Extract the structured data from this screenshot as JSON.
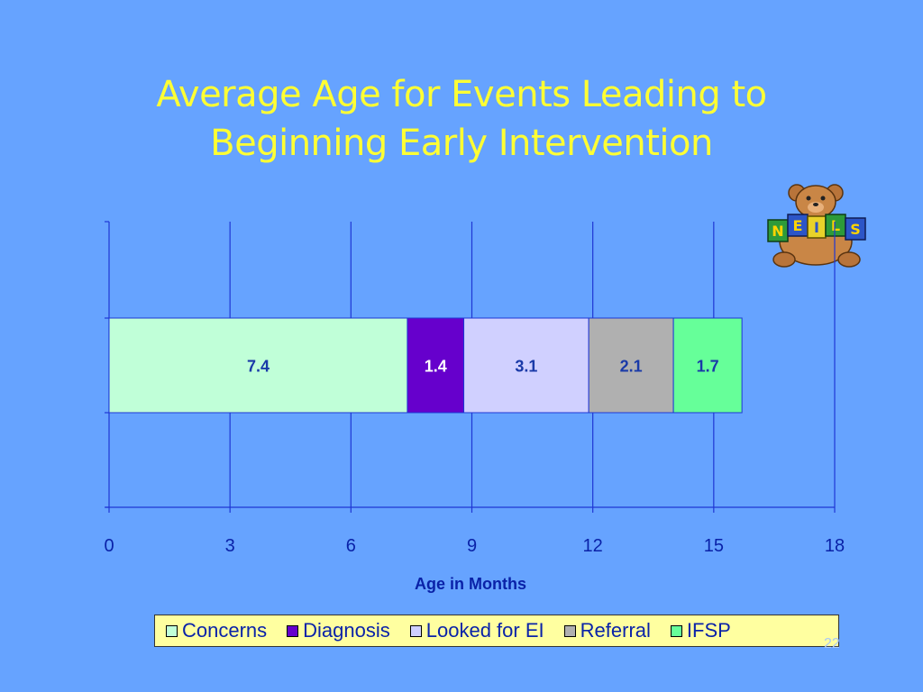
{
  "title_line1": "Average Age for Events Leading to",
  "title_line2": "Beginning Early Intervention",
  "slide_number": "22",
  "logo_text": "NEILS",
  "chart_data": {
    "type": "bar",
    "orientation": "horizontal",
    "stacked": true,
    "categories": [
      ""
    ],
    "series": [
      {
        "name": "Concerns",
        "values": [
          7.4
        ],
        "color": "#c0ffd8",
        "label_color": "#1a3aa8"
      },
      {
        "name": "Diagnosis",
        "values": [
          1.4
        ],
        "color": "#6600cc",
        "label_color": "#ffffff"
      },
      {
        "name": "Looked for EI",
        "values": [
          3.1
        ],
        "color": "#d0d0ff",
        "label_color": "#1a3aa8"
      },
      {
        "name": "Referral",
        "values": [
          2.1
        ],
        "color": "#b0b0b0",
        "label_color": "#1a3aa8"
      },
      {
        "name": "IFSP",
        "values": [
          1.7
        ],
        "color": "#66ff99",
        "label_color": "#1a3aa8"
      }
    ],
    "xlabel": "Age in Months",
    "xlim": [
      0,
      18
    ],
    "xticks": [
      "0",
      "3",
      "6",
      "9",
      "12",
      "15",
      "18"
    ],
    "grid": true,
    "legend_position": "bottom"
  },
  "colors": {
    "background": "#66a3ff",
    "title": "#ffff33",
    "legend_bg": "#ffffa0",
    "axis_text": "#0a22a8",
    "grid": "#1f37d4"
  }
}
